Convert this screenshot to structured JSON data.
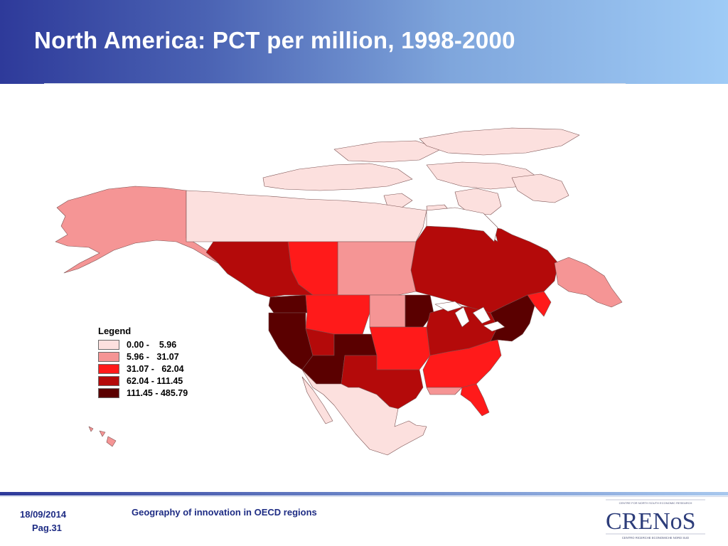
{
  "slide": {
    "title": "North America: PCT per million, 1998-2000"
  },
  "legend": {
    "title": "Legend",
    "classes": [
      {
        "label": "0.00 -    5.96",
        "color": "#fce0de"
      },
      {
        "label": "5.96 -   31.07",
        "color": "#f59595"
      },
      {
        "label": "31.07 -   62.04",
        "color": "#ff1a1a"
      },
      {
        "label": "62.04 - 111.45",
        "color": "#b40a0a"
      },
      {
        "label": "111.45 - 485.79",
        "color": "#5a0000"
      }
    ]
  },
  "footer": {
    "date": "18/09/2014",
    "page": "Pag.31",
    "subject": "Geography of innovation in OECD regions"
  },
  "logo": {
    "brand": "CRENoS",
    "top_line_1": "CENTRE FOR NORTH SOUTH ECONOMIC RESEARCH",
    "bottom_line": "CENTRO RICERCHE ECONOMICHE NORD SUD"
  }
}
